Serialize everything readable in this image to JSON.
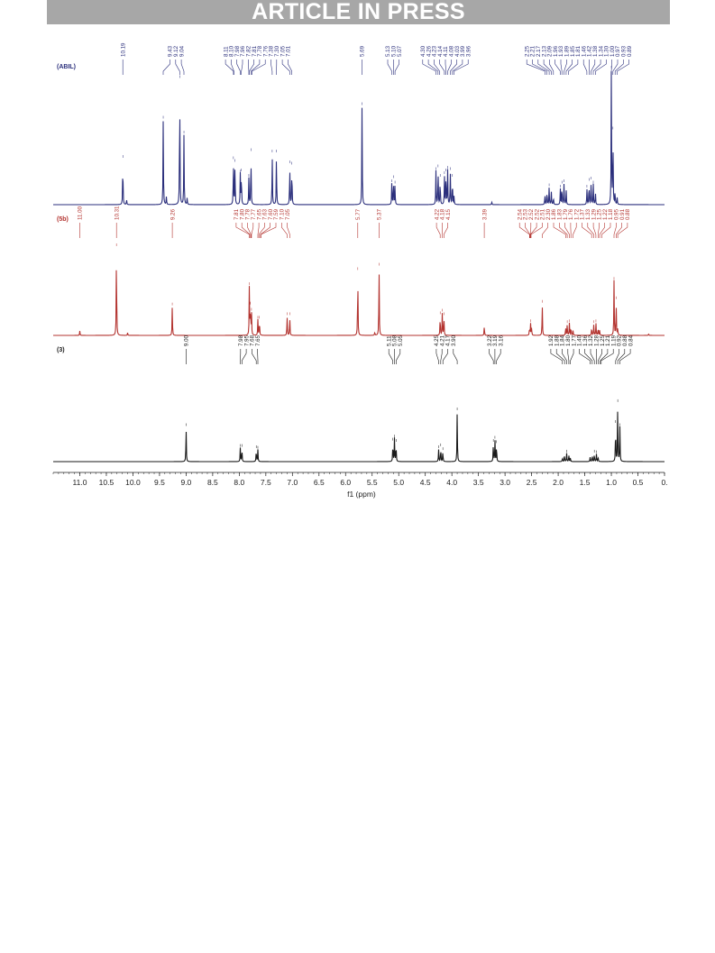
{
  "banner": {
    "text": "ARTICLE IN PRESS"
  },
  "chart_data": {
    "type": "line",
    "xlabel": "f1 (ppm)",
    "xlim": [
      11.5,
      0
    ],
    "x_reversed": true,
    "ticks": [
      {
        "v": 11.0,
        "label": "11.0"
      },
      {
        "v": 10.5,
        "label": "10.5"
      },
      {
        "v": 10.0,
        "label": "10.0"
      },
      {
        "v": 9.5,
        "label": "9.5"
      },
      {
        "v": 9.0,
        "label": "9.0"
      },
      {
        "v": 8.5,
        "label": "8.5"
      },
      {
        "v": 8.0,
        "label": "8.0"
      },
      {
        "v": 7.5,
        "label": "7.5"
      },
      {
        "v": 7.0,
        "label": "7.0"
      },
      {
        "v": 6.5,
        "label": "6.5"
      },
      {
        "v": 6.0,
        "label": "6.0"
      },
      {
        "v": 5.5,
        "label": "5.5"
      },
      {
        "v": 5.0,
        "label": "5.0"
      },
      {
        "v": 4.5,
        "label": "4.5"
      },
      {
        "v": 4.0,
        "label": "4.0"
      },
      {
        "v": 3.5,
        "label": "3.5"
      },
      {
        "v": 3.0,
        "label": "3.0"
      },
      {
        "v": 2.5,
        "label": "2.5"
      },
      {
        "v": 2.0,
        "label": "2.0"
      },
      {
        "v": 1.5,
        "label": "1.5"
      },
      {
        "v": 1.0,
        "label": "1.0"
      },
      {
        "v": 0.5,
        "label": "0.5"
      },
      {
        "v": 0.0,
        "label": "0."
      }
    ],
    "series": [
      {
        "name": "(ABIL)",
        "color": "#2b2f7c",
        "peaks": [
          {
            "x": 10.19,
            "h": 0.34
          },
          {
            "x": 10.12,
            "h": 0.04
          },
          {
            "x": 9.43,
            "h": 0.63
          },
          {
            "x": 9.37,
            "h": 0.06
          },
          {
            "x": 9.12,
            "h": 0.93
          },
          {
            "x": 9.04,
            "h": 0.52
          },
          {
            "x": 8.98,
            "h": 0.05
          },
          {
            "x": 8.11,
            "h": 0.33
          },
          {
            "x": 8.08,
            "h": 0.31
          },
          {
            "x": 7.98,
            "h": 0.23
          },
          {
            "x": 7.96,
            "h": 0.24
          },
          {
            "x": 7.82,
            "h": 0.2
          },
          {
            "x": 7.78,
            "h": 0.39
          },
          {
            "x": 7.38,
            "h": 0.38
          },
          {
            "x": 7.3,
            "h": 0.38
          },
          {
            "x": 7.05,
            "h": 0.3
          },
          {
            "x": 7.01,
            "h": 0.29
          },
          {
            "x": 5.69,
            "h": 0.73
          },
          {
            "x": 5.13,
            "h": 0.16
          },
          {
            "x": 5.1,
            "h": 0.19
          },
          {
            "x": 5.07,
            "h": 0.15
          },
          {
            "x": 4.3,
            "h": 0.25
          },
          {
            "x": 4.26,
            "h": 0.27
          },
          {
            "x": 4.22,
            "h": 0.2
          },
          {
            "x": 4.14,
            "h": 0.22
          },
          {
            "x": 4.11,
            "h": 0.24
          },
          {
            "x": 4.08,
            "h": 0.26
          },
          {
            "x": 4.03,
            "h": 0.25
          },
          {
            "x": 3.99,
            "h": 0.2
          },
          {
            "x": 3.96,
            "h": 0.06
          },
          {
            "x": 3.25,
            "h": 0.02
          },
          {
            "x": 2.25,
            "h": 0.08
          },
          {
            "x": 2.21,
            "h": 0.11
          },
          {
            "x": 2.17,
            "h": 0.13
          },
          {
            "x": 2.13,
            "h": 0.1
          },
          {
            "x": 2.09,
            "h": 0.06
          },
          {
            "x": 1.96,
            "h": 0.12
          },
          {
            "x": 1.93,
            "h": 0.15
          },
          {
            "x": 1.89,
            "h": 0.16
          },
          {
            "x": 1.85,
            "h": 0.11
          },
          {
            "x": 1.46,
            "h": 0.12
          },
          {
            "x": 1.42,
            "h": 0.17
          },
          {
            "x": 1.38,
            "h": 0.18
          },
          {
            "x": 1.34,
            "h": 0.15
          },
          {
            "x": 1.3,
            "h": 0.1
          },
          {
            "x": 1.0,
            "h": 1.0
          },
          {
            "x": 0.97,
            "h": 0.55
          },
          {
            "x": 0.93,
            "h": 0.1
          },
          {
            "x": 0.89,
            "h": 0.05
          }
        ],
        "labels": [
          {
            "group": [
              10.19
            ]
          },
          {
            "group": [
              9.43,
              9.12,
              9.04
            ]
          },
          {
            "group": [
              8.11,
              8.1,
              7.98,
              7.96,
              7.82,
              7.81,
              7.78,
              7.76,
              7.38,
              7.3,
              7.05,
              7.01
            ]
          },
          {
            "group": [
              5.69
            ]
          },
          {
            "group": [
              5.13,
              5.1,
              5.07
            ]
          },
          {
            "group": [
              4.3,
              4.26,
              4.23,
              4.14,
              4.11,
              4.08,
              4.03,
              3.99,
              3.96
            ]
          },
          {
            "group": [
              2.25,
              2.21,
              2.17,
              2.13,
              2.09,
              1.96,
              1.93,
              1.89,
              1.85,
              1.81,
              1.46,
              1.42,
              1.38,
              1.34,
              1.3,
              1.0,
              0.97,
              0.93,
              0.89
            ]
          }
        ],
        "label_text": {
          "10.19": "10.19",
          "9.43": "9.43",
          "9.12": "9.12",
          "9.04": "9.04",
          "8.11": "8.11",
          "8.10": "8.10",
          "7.98": "7.98",
          "7.96": "7.96",
          "7.82": "7.82",
          "7.81": "7.81",
          "7.78": "7.78",
          "7.76": "7.76",
          "7.38": "7.38",
          "7.30": "7.30",
          "7.05": "7.05",
          "7.01": "7.01",
          "5.69": "5.69",
          "5.13": "5.13",
          "5.10": "5.10",
          "5.07": "5.07",
          "4.30": "4.30",
          "4.26": "4.26",
          "4.23": "4.23",
          "4.14": "4.14",
          "4.11": "4.11",
          "4.08": "4.08",
          "4.03": "4.03",
          "3.99": "3.99",
          "3.96": "3.96",
          "2.25": "2.25",
          "2.21": "2.21",
          "2.17": "2.17",
          "2.13": "2.13",
          "2.09": "2.09",
          "1.96": "1.96",
          "1.93": "1.93",
          "1.89": "1.89",
          "1.85": "1.85",
          "1.81": "1.81",
          "1.46": "1.46",
          "1.42": "1.42",
          "1.38": "1.38",
          "1.34": "1.34",
          "1.30": "1.30",
          "1.00": "1.00",
          "0.97": "0.97",
          "0.93": "0.93",
          "0.89": "0.89"
        }
      },
      {
        "name": "(5b)",
        "color": "#b3332f",
        "peaks": [
          {
            "x": 11.0,
            "h": 0.05
          },
          {
            "x": 10.31,
            "h": 1.0
          },
          {
            "x": 10.1,
            "h": 0.03
          },
          {
            "x": 9.26,
            "h": 0.33
          },
          {
            "x": 7.81,
            "h": 0.56
          },
          {
            "x": 7.79,
            "h": 0.34
          },
          {
            "x": 7.77,
            "h": 0.27
          },
          {
            "x": 7.65,
            "h": 0.18
          },
          {
            "x": 7.62,
            "h": 0.18
          },
          {
            "x": 7.1,
            "h": 0.22
          },
          {
            "x": 7.05,
            "h": 0.22
          },
          {
            "x": 5.77,
            "h": 0.73
          },
          {
            "x": 5.45,
            "h": 0.04
          },
          {
            "x": 5.37,
            "h": 0.78
          },
          {
            "x": 4.22,
            "h": 0.23
          },
          {
            "x": 4.18,
            "h": 0.26
          },
          {
            "x": 4.15,
            "h": 0.22
          },
          {
            "x": 3.39,
            "h": 0.11
          },
          {
            "x": 2.54,
            "h": 0.09
          },
          {
            "x": 2.52,
            "h": 0.14
          },
          {
            "x": 2.5,
            "h": 0.09
          },
          {
            "x": 2.3,
            "h": 0.36
          },
          {
            "x": 1.86,
            "h": 0.1
          },
          {
            "x": 1.83,
            "h": 0.13
          },
          {
            "x": 1.79,
            "h": 0.14
          },
          {
            "x": 1.76,
            "h": 0.1
          },
          {
            "x": 1.72,
            "h": 0.06
          },
          {
            "x": 1.37,
            "h": 0.1
          },
          {
            "x": 1.33,
            "h": 0.13
          },
          {
            "x": 1.29,
            "h": 0.14
          },
          {
            "x": 1.25,
            "h": 0.09
          },
          {
            "x": 1.22,
            "h": 0.06
          },
          {
            "x": 0.95,
            "h": 0.62
          },
          {
            "x": 0.91,
            "h": 0.4
          },
          {
            "x": 0.88,
            "h": 0.08
          },
          {
            "x": 0.3,
            "h": 0.02
          }
        ],
        "labels": [
          {
            "group": [
              11.0
            ]
          },
          {
            "group": [
              10.31
            ]
          },
          {
            "group": [
              9.26
            ]
          },
          {
            "group": [
              7.81,
              7.8,
              7.78,
              7.77,
              7.65,
              7.63,
              7.6,
              7.59,
              7.1,
              7.05
            ]
          },
          {
            "group": [
              5.77
            ]
          },
          {
            "group": [
              5.37
            ]
          },
          {
            "group": [
              4.22,
              4.18,
              4.15
            ]
          },
          {
            "group": [
              3.39
            ]
          },
          {
            "group": [
              2.54,
              2.53,
              2.52,
              2.52,
              2.51,
              2.3,
              1.86,
              1.83,
              1.79,
              1.76,
              1.72,
              1.37,
              1.33,
              1.29,
              1.25,
              1.22,
              1.18,
              0.95,
              0.91,
              0.88
            ]
          }
        ],
        "label_text": {
          "11.00": "11.00",
          "10.31": "10.31",
          "9.26": "9.26",
          "7.81": "7.81",
          "7.80": "7.80",
          "7.78": "7.78",
          "7.77": "7.77",
          "7.65": "7.65",
          "7.63": "7.63",
          "7.60": "7.60",
          "7.59": "7.59",
          "7.10": "7.10",
          "7.05": "7.05",
          "5.77": "5.77",
          "5.37": "5.37",
          "4.22": "4.22",
          "4.18": "4.18",
          "4.15": "4.15",
          "3.39": "3.39",
          "2.54": "2.54",
          "2.53": "2.53",
          "2.52": "2.52",
          "2.51": "2.51",
          "2.30": "2.30",
          "1.86": "1.86",
          "1.83": "1.83",
          "1.79": "1.79",
          "1.76": "1.76",
          "1.72": "1.72",
          "1.37": "1.37",
          "1.33": "1.33",
          "1.29": "1.29",
          "1.25": "1.25",
          "1.22": "1.22",
          "1.18": "1.18",
          "0.95": "0.95",
          "0.91": "0.91",
          "0.88": "0.88"
        }
      },
      {
        "name": "(3)",
        "color": "#1a1a1a",
        "peaks": [
          {
            "x": 9.0,
            "h": 0.55
          },
          {
            "x": 7.98,
            "h": 0.22
          },
          {
            "x": 7.95,
            "h": 0.22
          },
          {
            "x": 7.68,
            "h": 0.2
          },
          {
            "x": 7.65,
            "h": 0.19
          },
          {
            "x": 5.11,
            "h": 0.32
          },
          {
            "x": 5.08,
            "h": 0.37
          },
          {
            "x": 5.05,
            "h": 0.3
          },
          {
            "x": 4.25,
            "h": 0.2
          },
          {
            "x": 4.21,
            "h": 0.23
          },
          {
            "x": 4.17,
            "h": 0.17
          },
          {
            "x": 3.9,
            "h": 0.8
          },
          {
            "x": 3.22,
            "h": 0.3
          },
          {
            "x": 3.19,
            "h": 0.35
          },
          {
            "x": 3.16,
            "h": 0.28
          },
          {
            "x": 1.92,
            "h": 0.07
          },
          {
            "x": 1.88,
            "h": 0.11
          },
          {
            "x": 1.84,
            "h": 0.13
          },
          {
            "x": 1.8,
            "h": 0.11
          },
          {
            "x": 1.77,
            "h": 0.07
          },
          {
            "x": 1.4,
            "h": 0.07
          },
          {
            "x": 1.36,
            "h": 0.11
          },
          {
            "x": 1.32,
            "h": 0.13
          },
          {
            "x": 1.28,
            "h": 0.12
          },
          {
            "x": 1.25,
            "h": 0.08
          },
          {
            "x": 0.92,
            "h": 0.6
          },
          {
            "x": 0.88,
            "h": 0.93
          },
          {
            "x": 0.84,
            "h": 0.55
          }
        ],
        "labels": [
          {
            "group": [
              9.0
            ]
          },
          {
            "group": [
              7.98,
              7.95,
              7.68,
              7.65
            ]
          },
          {
            "group": [
              5.11,
              5.08,
              5.05
            ]
          },
          {
            "group": [
              4.25,
              4.21,
              4.17,
              3.9
            ]
          },
          {
            "group": [
              3.22,
              3.19,
              3.16
            ]
          },
          {
            "group": [
              1.92,
              1.88,
              1.84,
              1.8,
              1.77,
              1.4,
              1.36,
              1.32,
              1.28,
              1.25,
              1.21,
              1.19,
              0.92,
              0.88,
              0.84
            ]
          }
        ],
        "label_text": {
          "9.00": "9.00",
          "7.98": "7.98",
          "7.95": "7.95",
          "7.68": "7.68",
          "7.65": "7.65",
          "5.11": "5.11",
          "5.08": "5.08",
          "5.05": "5.05",
          "4.25": "4.25",
          "4.21": "4.21",
          "4.17": "4.17",
          "3.90": "3.90",
          "3.22": "3.22",
          "3.19": "3.19",
          "3.16": "3.16",
          "1.92": "1.92",
          "1.88": "1.88",
          "1.84": "1.84",
          "1.80": "1.80",
          "1.77": "1.77",
          "1.40": "1.40",
          "1.36": "1.36",
          "1.32": "1.32",
          "1.28": "1.28",
          "1.25": "1.25",
          "1.21": "1.21",
          "1.19": "1.19",
          "0.92": "0.92",
          "0.88": "0.88",
          "0.84": "0.84"
        }
      }
    ]
  }
}
